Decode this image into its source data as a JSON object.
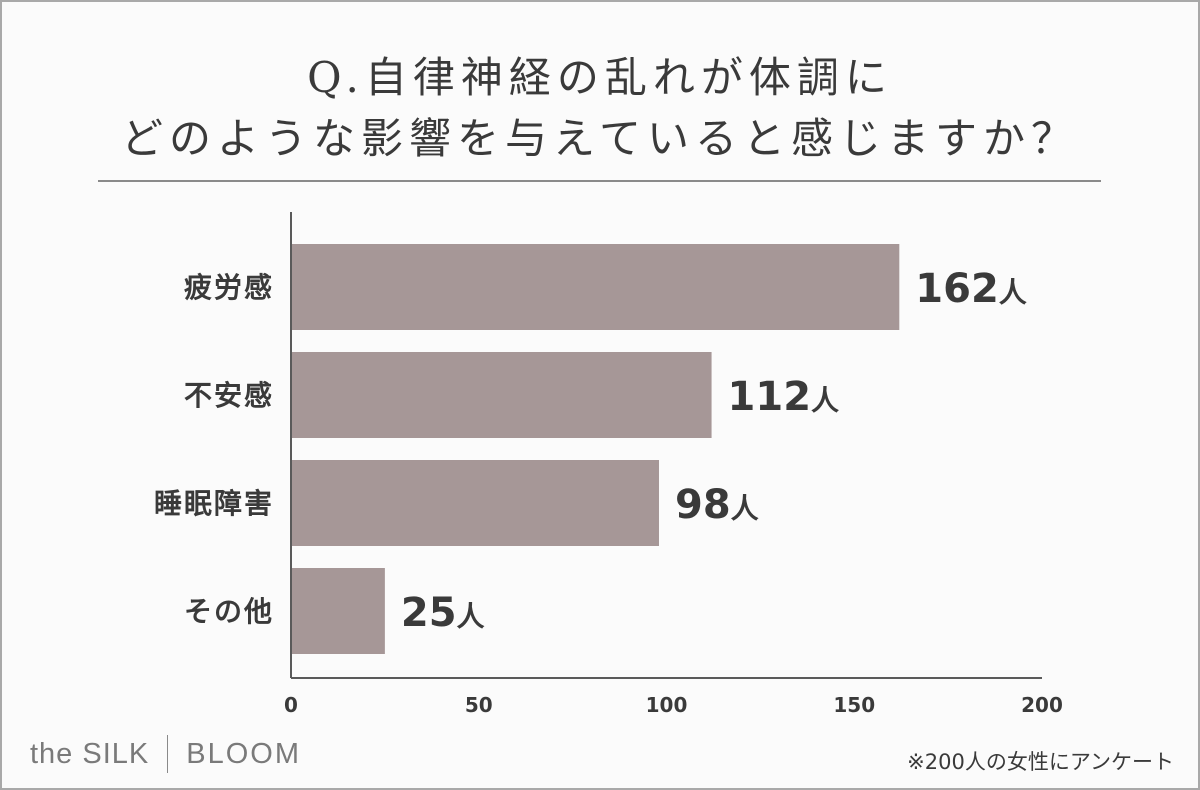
{
  "title": {
    "line1": "Q.自律神経の乱れが体調に",
    "line2": "どのような影響を与えていると感じますか？"
  },
  "chart_data": {
    "type": "bar",
    "orientation": "horizontal",
    "categories": [
      "疲労感",
      "不安感",
      "睡眠障害",
      "その他"
    ],
    "values": [
      162,
      112,
      98,
      25
    ],
    "value_labels": [
      "162",
      "112",
      "98",
      "25"
    ],
    "value_unit": "人",
    "xlim": [
      0,
      200
    ],
    "x_ticks": [
      "0",
      "50",
      "100",
      "150",
      "200"
    ],
    "bar_color": "#a69797",
    "grid": false
  },
  "brand": {
    "left": "the SILK",
    "right": "BLOOM"
  },
  "footnote": "※200人の女性にアンケート"
}
